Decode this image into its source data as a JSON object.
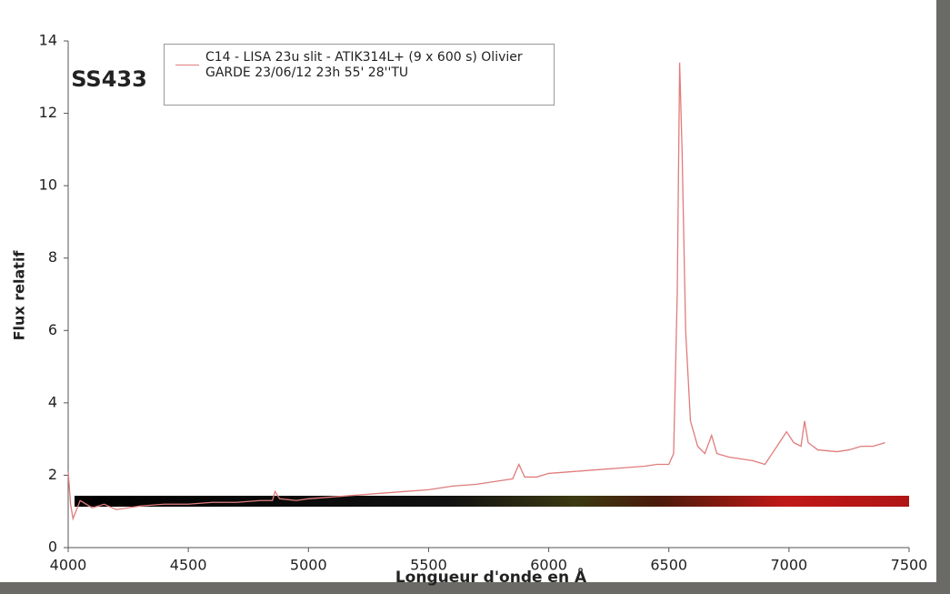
{
  "chart_data": {
    "type": "line",
    "title": "SS433",
    "legend_label": "C14 - LISA 23u slit - ATIK314L+ (9 x 600 s) Olivier GARDE 23/06/12 23h 55' 28''TU",
    "xlabel": "Longueur d'onde en Å",
    "ylabel": "Flux relatif",
    "xlim": [
      4000,
      7500
    ],
    "xticks": [
      4000,
      4500,
      5000,
      5500,
      6000,
      6500,
      7000,
      7500
    ],
    "ylim": [
      0,
      14
    ],
    "yticks": [
      0,
      2,
      4,
      6,
      8,
      10,
      12,
      14
    ],
    "series": [
      {
        "name": "C14 - LISA 23u slit - ATIK314L+ (9 x 600 s) Olivier GARDE 23/06/12 23h 55' 28''TU",
        "color": "#e07c7c",
        "x": [
          4000,
          4010,
          4020,
          4050,
          4100,
          4150,
          4200,
          4250,
          4300,
          4400,
          4500,
          4600,
          4700,
          4800,
          4850,
          4861,
          4880,
          4950,
          5000,
          5100,
          5200,
          5300,
          5400,
          5500,
          5600,
          5700,
          5800,
          5850,
          5876,
          5900,
          5950,
          6000,
          6100,
          6200,
          6300,
          6400,
          6450,
          6500,
          6520,
          6535,
          6545,
          6555,
          6570,
          6590,
          6620,
          6650,
          6678,
          6700,
          6750,
          6800,
          6850,
          6900,
          6930,
          6960,
          6990,
          7020,
          7050,
          7065,
          7080,
          7120,
          7200,
          7250,
          7300,
          7350,
          7400
        ],
        "values": [
          2.1,
          1.2,
          0.8,
          1.3,
          1.1,
          1.2,
          1.05,
          1.1,
          1.15,
          1.2,
          1.2,
          1.25,
          1.25,
          1.3,
          1.3,
          1.55,
          1.35,
          1.3,
          1.35,
          1.4,
          1.45,
          1.5,
          1.55,
          1.6,
          1.7,
          1.75,
          1.85,
          1.9,
          2.3,
          1.95,
          1.95,
          2.05,
          2.1,
          2.15,
          2.2,
          2.25,
          2.3,
          2.3,
          2.6,
          7,
          13.4,
          11,
          6,
          3.5,
          2.8,
          2.6,
          3.1,
          2.6,
          2.5,
          2.45,
          2.4,
          2.3,
          2.6,
          2.9,
          3.2,
          2.9,
          2.8,
          3.5,
          2.9,
          2.7,
          2.65,
          2.7,
          2.8,
          2.8,
          2.9
        ]
      }
    ],
    "grid": false
  }
}
